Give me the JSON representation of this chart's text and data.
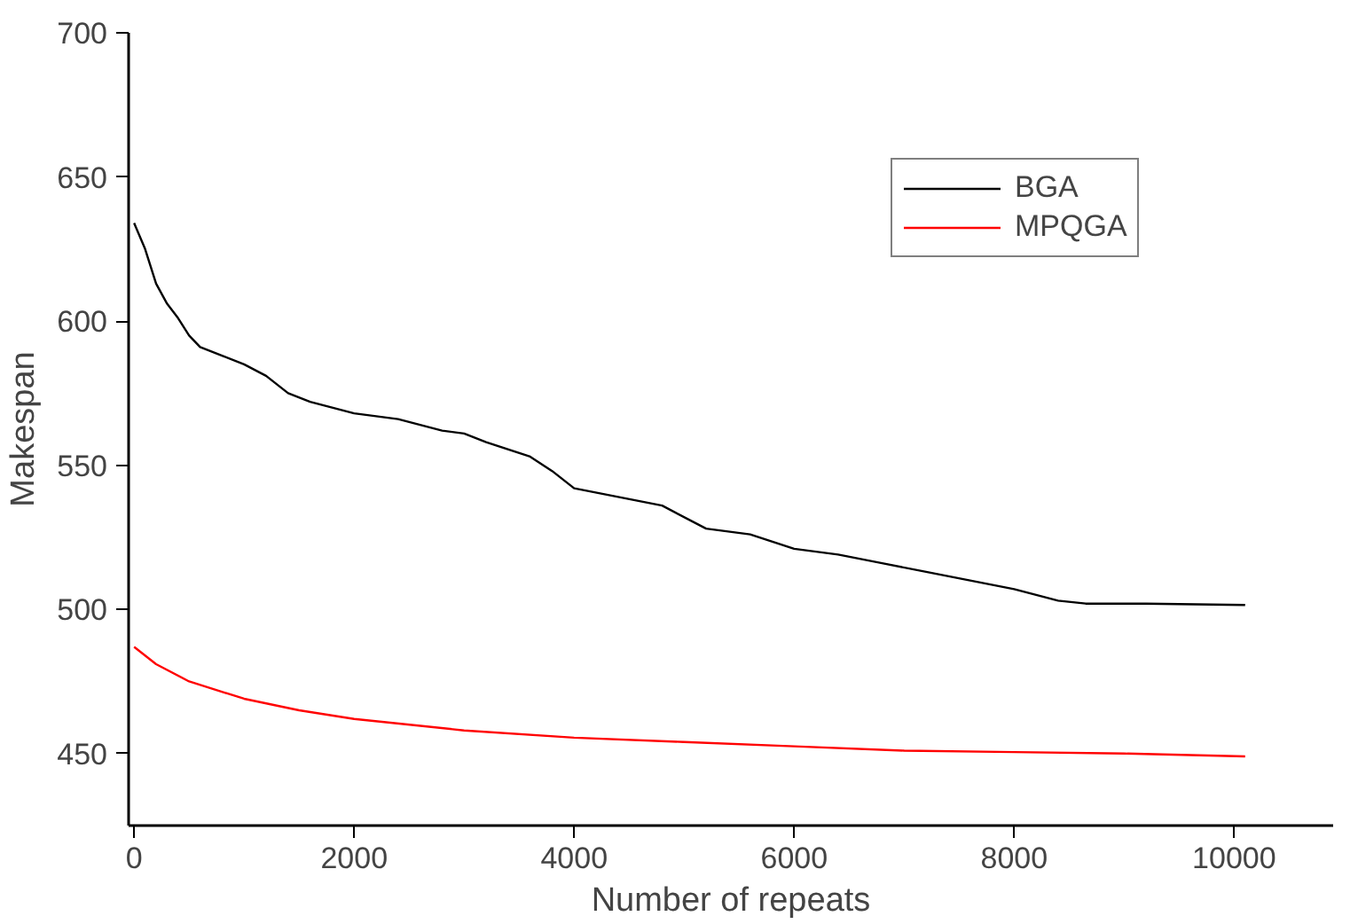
{
  "chart_data": {
    "type": "line",
    "xlabel": "Number of repeats",
    "ylabel": "Makespan",
    "xlim": [
      -50,
      10900
    ],
    "ylim": [
      425,
      700
    ],
    "xticks": [
      0,
      2000,
      4000,
      6000,
      8000,
      10000
    ],
    "yticks": [
      450,
      500,
      550,
      600,
      650,
      700
    ],
    "grid": false,
    "legend": "top right",
    "marker": "none",
    "line_style": "solid",
    "series": [
      {
        "name": "BGA",
        "color": "#000000",
        "x": [
          0,
          100,
          200,
          300,
          400,
          500,
          600,
          800,
          1000,
          1200,
          1400,
          1600,
          2000,
          2400,
          2800,
          3000,
          3200,
          3600,
          3800,
          4000,
          4400,
          4800,
          5200,
          5600,
          6000,
          6400,
          6800,
          7200,
          7600,
          8000,
          8400,
          8650,
          9200,
          10100
        ],
        "values": [
          634,
          625,
          613,
          606,
          601,
          595,
          591,
          588,
          585,
          581,
          575,
          572,
          568,
          566,
          562,
          561,
          558,
          553,
          548,
          542,
          539,
          536,
          528,
          526,
          521,
          519,
          516,
          513,
          510,
          507,
          503,
          502,
          502,
          501.5
        ]
      },
      {
        "name": "MPQGA",
        "color": "#ff0000",
        "x": [
          0,
          200,
          500,
          1000,
          1500,
          2000,
          3000,
          4000,
          5000,
          6000,
          7000,
          8000,
          9000,
          10100
        ],
        "values": [
          487,
          481,
          475,
          469,
          465,
          462,
          458,
          455.5,
          454,
          452.5,
          451,
          450.5,
          450,
          449
        ]
      }
    ]
  }
}
